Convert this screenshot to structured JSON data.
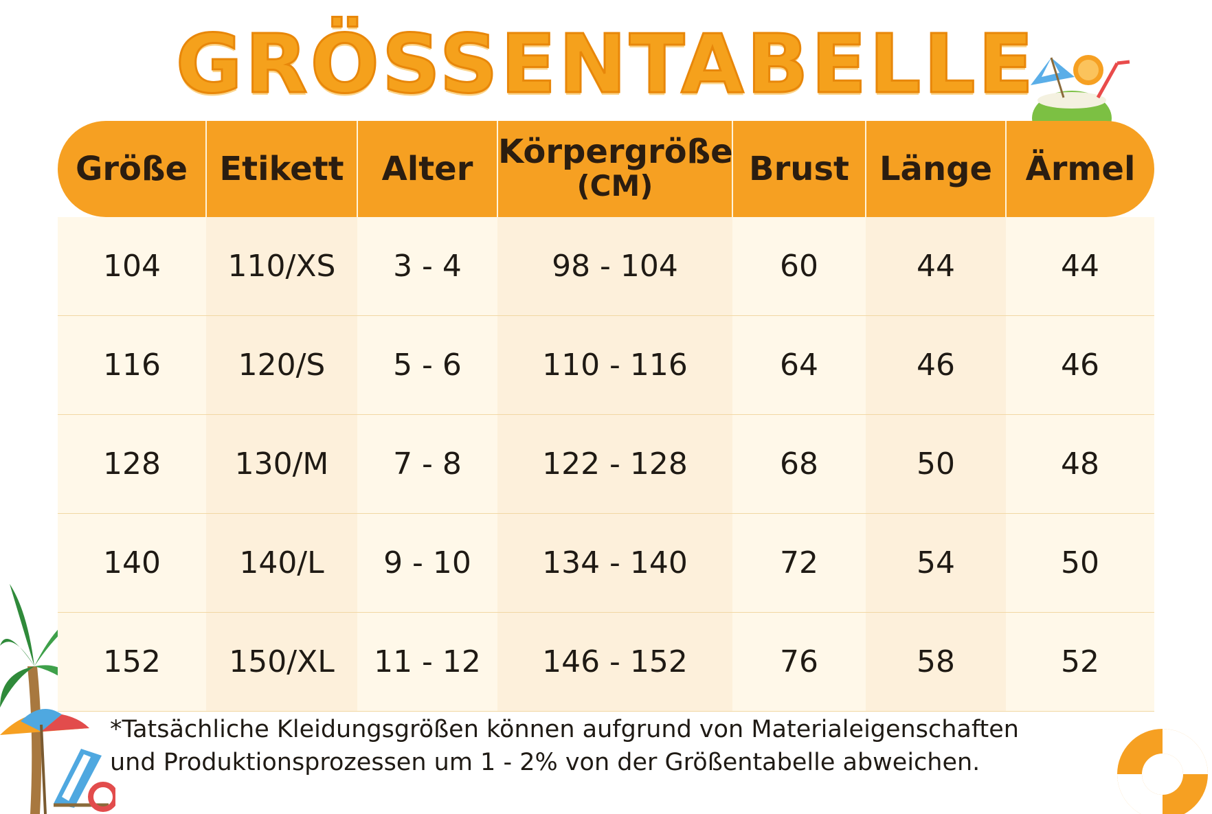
{
  "title": "GRÖSSENTABELLE",
  "table": {
    "headers": [
      {
        "label": "Größe",
        "sub": ""
      },
      {
        "label": "Etikett",
        "sub": ""
      },
      {
        "label": "Alter",
        "sub": ""
      },
      {
        "label": "Körpergröße",
        "sub": "(CM)"
      },
      {
        "label": "Brust",
        "sub": ""
      },
      {
        "label": "Länge",
        "sub": ""
      },
      {
        "label": "Ärmel",
        "sub": ""
      }
    ],
    "rows": [
      [
        "104",
        "110/XS",
        "3 - 4",
        "98 - 104",
        "60",
        "44",
        "44"
      ],
      [
        "116",
        "120/S",
        "5 - 6",
        "110 - 116",
        "64",
        "46",
        "46"
      ],
      [
        "128",
        "130/M",
        "7 - 8",
        "122 - 128",
        "68",
        "50",
        "48"
      ],
      [
        "140",
        "140/L",
        "9 - 10",
        "134 - 140",
        "72",
        "54",
        "50"
      ],
      [
        "152",
        "150/XL",
        "11 - 12",
        "146 - 152",
        "76",
        "58",
        "52"
      ]
    ]
  },
  "note": {
    "line1": "*Tatsächliche Kleidungsgrößen können aufgrund von Materialeigenschaften",
    "line2": "und Produktionsprozessen um 1 - 2% von der Größentabelle abweichen."
  },
  "colors": {
    "accent": "#f6a022",
    "row_light": "#fff8e9",
    "row_dark": "#fdf0db"
  },
  "icons": [
    "coconut-drink-icon",
    "palm-tree-icon",
    "beach-umbrella-icon",
    "beach-chair-icon",
    "swim-ring-icon"
  ]
}
